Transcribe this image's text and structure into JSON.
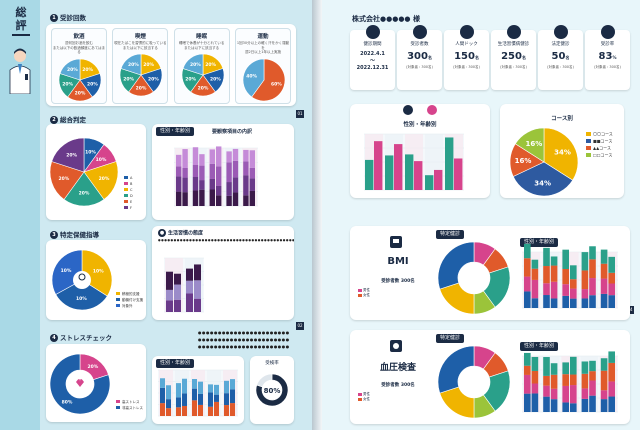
{
  "left_page": {
    "title": "総評",
    "section1": {
      "label": "受診回数",
      "items": [
        {
          "title": "飲酒",
          "note": "週何回お酒を飲む\nまたは以下の飲酒頻度にあてはまる",
          "slices": [
            {
              "pct": 20,
              "color": "#f0b400"
            },
            {
              "pct": 20,
              "color": "#1e5fa8"
            },
            {
              "pct": 20,
              "color": "#e05a2b"
            },
            {
              "pct": 20,
              "color": "#2aa08a"
            },
            {
              "pct": 20,
              "color": "#5aa9d6"
            }
          ],
          "labels": [
            "20%",
            "20%",
            "20%",
            "20%",
            "20%"
          ]
        },
        {
          "title": "喫煙",
          "note": "現在たばこを習慣的に吸っている\nまたは以下に該当する",
          "slices": [
            {
              "pct": 20,
              "color": "#f0b400"
            },
            {
              "pct": 20,
              "color": "#1e5fa8"
            },
            {
              "pct": 20,
              "color": "#e05a2b"
            },
            {
              "pct": 20,
              "color": "#2aa08a"
            },
            {
              "pct": 20,
              "color": "#5aa9d6"
            }
          ],
          "labels": [
            "20%",
            "20%",
            "20%",
            "20%",
            "20%"
          ]
        },
        {
          "title": "睡眠",
          "note": "睡眠で休養が十分とれている\nまたは以下に該当する",
          "slices": [
            {
              "pct": 20,
              "color": "#f0b400"
            },
            {
              "pct": 20,
              "color": "#1e5fa8"
            },
            {
              "pct": 20,
              "color": "#e05a2b"
            },
            {
              "pct": 20,
              "color": "#2aa08a"
            },
            {
              "pct": 20,
              "color": "#5aa9d6"
            }
          ],
          "labels": [
            "20%",
            "20%",
            "20%",
            "20%",
            "20%"
          ]
        },
        {
          "title": "運動",
          "note": "1回30分以上の軽く汗をかく運動を\n週2日以上1年以上実施",
          "slices": [
            {
              "pct": 60,
              "color": "#e05a2b"
            },
            {
              "pct": 40,
              "color": "#5aa9d6"
            }
          ],
          "labels": [
            "60%",
            "40%"
          ]
        }
      ]
    },
    "section2": {
      "label": "総合判定",
      "donut_labels": [
        "10%",
        "10%",
        "20%",
        "20%",
        "20%",
        "20%"
      ],
      "legend": [
        "A",
        "B",
        "C",
        "D",
        "E",
        "F"
      ],
      "chart_title": "性別・年齢別",
      "chart_title2": "要観察項目の内訳"
    },
    "section3": {
      "label": "特定保健指導",
      "donut_labels": [
        "10%",
        "10%",
        "10%"
      ],
      "legend": [
        "積極的支援",
        "動機付け支援",
        "対象外"
      ],
      "chart_title": "生活習慣の態度"
    },
    "section4": {
      "label": "ストレスチェック",
      "donut_labels": [
        "20%",
        "80%"
      ],
      "legend": [
        "高ストレス",
        "非高ストレス"
      ],
      "chart_title": "性別・年齢別",
      "side_label": "受検率",
      "side_value": "80%"
    },
    "page_numbers": [
      "01",
      "02",
      "03"
    ]
  },
  "right_page": {
    "company": "株式会社●●●●● 様",
    "kpis": [
      {
        "label": "健診期間",
        "date": "2022.4.1\n〜\n2022.12.31"
      },
      {
        "label": "受診者数",
        "value": "300",
        "unit": "名",
        "sub": "(対象者 : 300名)"
      },
      {
        "label": "人間ドック",
        "value": "150",
        "unit": "名",
        "sub": "(対象者 : 300名)"
      },
      {
        "label": "生活習慣病健診",
        "value": "250",
        "unit": "名",
        "sub": "(対象者 : 300名)"
      },
      {
        "label": "法定健診",
        "value": "50",
        "unit": "名",
        "sub": "(対象者 : 300名)"
      },
      {
        "label": "受診率",
        "value": "83",
        "unit": "%",
        "sub": "(対象者 : 300名)"
      }
    ],
    "sex_age": {
      "title": "性別・年齢別",
      "legend": [
        "男性",
        "女性"
      ]
    },
    "course": {
      "title": "コース別",
      "slices": [
        {
          "pct": 34,
          "color": "#f0b400"
        },
        {
          "pct": 34,
          "color": "#2e5aa0"
        },
        {
          "pct": 16,
          "color": "#e05a2b"
        },
        {
          "pct": 16,
          "color": "#9bc43a"
        }
      ],
      "labels": [
        "34%",
        "34%",
        "16%",
        "16%"
      ],
      "legend": [
        "〇〇コース",
        "■■コース",
        "▲▲コース",
        "□□コース"
      ]
    },
    "bmi": {
      "tag": "特定健診",
      "name": "BMI",
      "examinees": "受診者数 300名",
      "chart_title": "性別・年齢別",
      "legend": [
        "男性",
        "女性"
      ]
    },
    "bp": {
      "tag": "特定健診",
      "name": "血圧検査",
      "examinees": "受診者数 300名",
      "chart_title": "性別・年齢別",
      "legend": [
        "男性",
        "女性"
      ]
    }
  },
  "colors": {
    "navy": "#1b2b44",
    "teal": "#2aa08a",
    "pink": "#d6448c",
    "yellow": "#f0b400",
    "blue": "#1e5fa8",
    "orange": "#e05a2b",
    "purple": "#6a3a8a"
  }
}
